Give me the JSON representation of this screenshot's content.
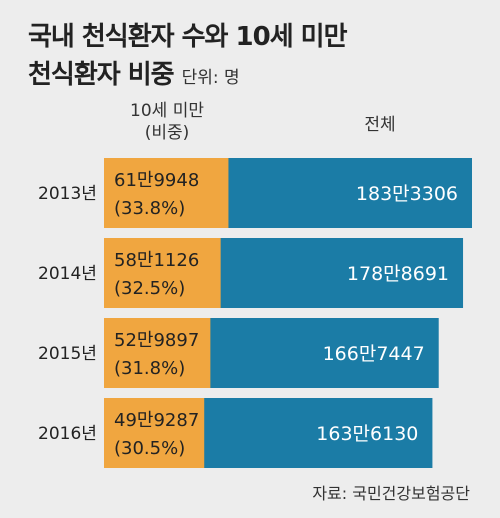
{
  "title_line1": "국내 천식환자 수와 10세 미만",
  "title_line2": "천식환자 비중",
  "unit": "단위: 명",
  "col_under10_line1": "10세 미만",
  "col_under10_line2": "(비중)",
  "col_total": "전체",
  "source": "자료: 국민건강보험공단",
  "colors": {
    "under10": "#f0a640",
    "total": "#1b7ca6",
    "text_on_total": "#ffffff",
    "text_on_under10": "#222222"
  },
  "chart_data": {
    "type": "bar",
    "orientation": "horizontal",
    "stacked": true,
    "categories": [
      "2013년",
      "2014년",
      "2015년",
      "2016년"
    ],
    "series": [
      {
        "name": "10세 미만",
        "values": [
          619948,
          581126,
          529897,
          499287
        ],
        "labels": [
          "61만9948",
          "58만1126",
          "52만9897",
          "49만9287"
        ],
        "share_labels": [
          "(33.8%)",
          "(32.5%)",
          "(31.8%)",
          "(30.5%)"
        ]
      },
      {
        "name": "전체",
        "values": [
          1833306,
          1788691,
          1667447,
          1636130
        ],
        "labels": [
          "183만3306",
          "178만8691",
          "166만7447",
          "163만6130"
        ]
      }
    ]
  }
}
